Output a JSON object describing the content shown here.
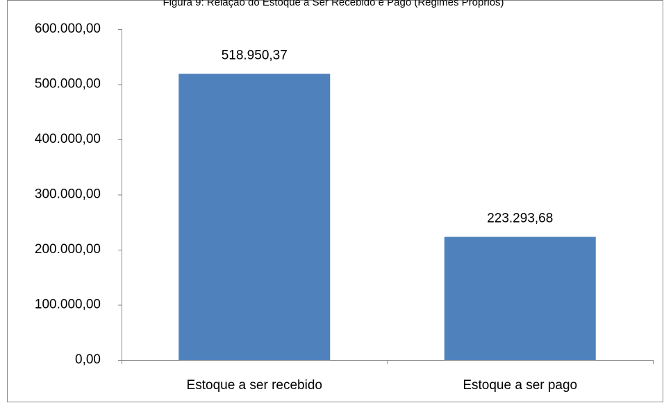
{
  "chart_data": {
    "type": "bar",
    "title": "Figura 9: Relação do Estoque a Ser Recebido e Pago (Regimes Próprios)",
    "categories": [
      "Estoque a ser recebido",
      "Estoque a ser pago"
    ],
    "values": [
      518950.37,
      223293.68
    ],
    "value_labels": [
      "518.950,37",
      "223.293,68"
    ],
    "color": "#4f81bd",
    "ylim": [
      0,
      600000
    ],
    "yticks": [
      {
        "value": 0,
        "label": "0,00"
      },
      {
        "value": 100000,
        "label": "100.000,00"
      },
      {
        "value": 200000,
        "label": "200.000,00"
      },
      {
        "value": 300000,
        "label": "300.000,00"
      },
      {
        "value": 400000,
        "label": "400.000,00"
      },
      {
        "value": 500000,
        "label": "500.000,00"
      },
      {
        "value": 600000,
        "label": "600.000,00"
      }
    ],
    "grid": false
  }
}
